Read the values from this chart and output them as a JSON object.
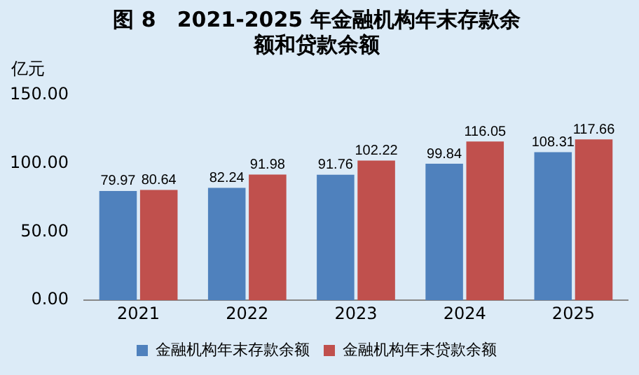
{
  "chart_data": {
    "type": "bar",
    "title": "图 8　2021-2025 年金融机构年末存款余额和贷款余额",
    "ylabel": "亿元",
    "categories": [
      "2021",
      "2022",
      "2023",
      "2024",
      "2025"
    ],
    "series": [
      {
        "name": "金融机构年末存款余额",
        "color": "#4f81bd",
        "values": [
          79.97,
          82.24,
          91.76,
          99.84,
          108.31
        ]
      },
      {
        "name": "金融机构年末贷款余额",
        "color": "#c0504d",
        "values": [
          80.64,
          91.98,
          102.22,
          116.05,
          117.66
        ]
      }
    ],
    "ylim": [
      0,
      150
    ],
    "yticks": [
      {
        "value": 0,
        "label": "0.00"
      },
      {
        "value": 50,
        "label": "50.00"
      },
      {
        "value": 100,
        "label": "100.00"
      },
      {
        "value": 150,
        "label": "150.00"
      }
    ],
    "grid": false,
    "legend": "bottom",
    "data_labels": true
  }
}
